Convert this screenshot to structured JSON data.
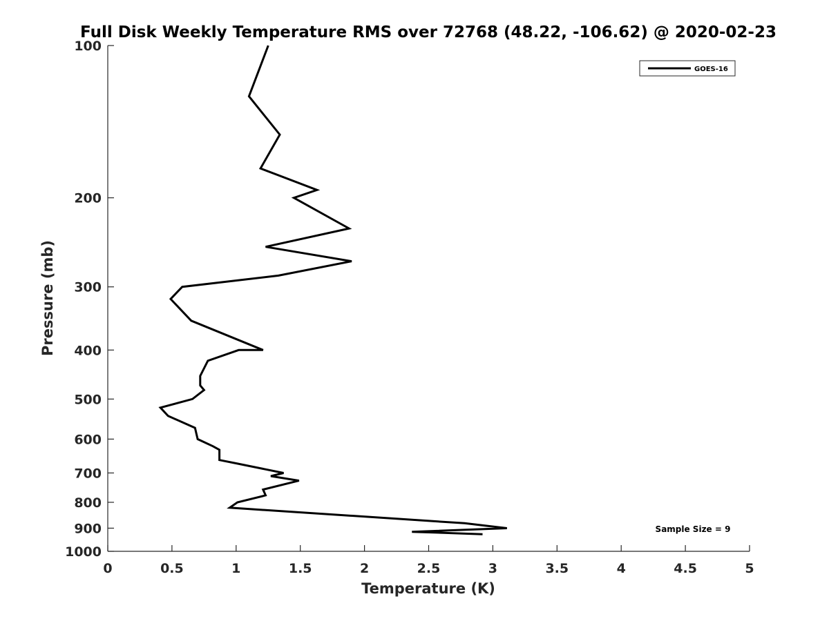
{
  "chart_data": {
    "type": "line",
    "title": "Full Disk Weekly Temperature RMS over 72768 (48.22, -106.62) @ 2020-02-23",
    "xlabel": "Temperature (K)",
    "ylabel": "Pressure (mb)",
    "xlim": [
      0,
      5
    ],
    "ylim": [
      100,
      1000
    ],
    "yscale": "log",
    "y_reversed": true,
    "xticks": [
      "0",
      "0.5",
      "1",
      "1.5",
      "2",
      "2.5",
      "3",
      "3.5",
      "4",
      "4.5",
      "5"
    ],
    "yticks": [
      "100",
      "200",
      "300",
      "400",
      "500",
      "600",
      "700",
      "800",
      "900",
      "1000"
    ],
    "grid": false,
    "legend_position": "top-right",
    "annotation": "Sample Size = 9",
    "series": [
      {
        "name": "GOES-16",
        "color": "#000000",
        "points": [
          [
            1.25,
            100
          ],
          [
            1.1,
            126
          ],
          [
            1.34,
            150
          ],
          [
            1.19,
            175
          ],
          [
            1.63,
            193
          ],
          [
            1.45,
            200
          ],
          [
            1.88,
            230
          ],
          [
            1.23,
            250
          ],
          [
            1.9,
            267
          ],
          [
            1.33,
            285
          ],
          [
            0.58,
            300
          ],
          [
            0.49,
            317
          ],
          [
            0.65,
            350
          ],
          [
            1.21,
            400
          ],
          [
            1.02,
            400
          ],
          [
            0.78,
            420
          ],
          [
            0.72,
            450
          ],
          [
            0.72,
            470
          ],
          [
            0.75,
            480
          ],
          [
            0.66,
            500
          ],
          [
            0.41,
            520
          ],
          [
            0.47,
            540
          ],
          [
            0.68,
            570
          ],
          [
            0.7,
            600
          ],
          [
            0.82,
            620
          ],
          [
            0.87,
            630
          ],
          [
            0.87,
            660
          ],
          [
            1.0,
            670
          ],
          [
            1.37,
            700
          ],
          [
            1.27,
            710
          ],
          [
            1.49,
            725
          ],
          [
            1.21,
            755
          ],
          [
            1.23,
            775
          ],
          [
            1.01,
            800
          ],
          [
            0.95,
            820
          ],
          [
            2.78,
            880
          ],
          [
            3.11,
            900
          ],
          [
            2.37,
            915
          ],
          [
            2.92,
            925
          ]
        ]
      }
    ]
  }
}
